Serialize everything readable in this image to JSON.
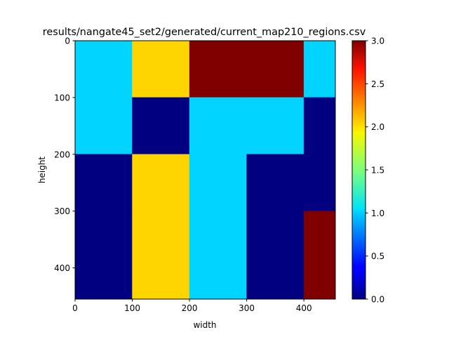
{
  "chart_data": {
    "type": "heatmap",
    "title": "results/nangate45_set2/generated/current_map210_regions.csv",
    "xlabel": "width",
    "ylabel": "height",
    "x_edges": [
      0,
      100,
      200,
      300,
      400,
      455
    ],
    "y_edges": [
      0,
      100,
      200,
      300,
      455
    ],
    "xlim": [
      0,
      455
    ],
    "ylim": [
      455,
      0
    ],
    "x_ticks": [
      0,
      100,
      200,
      300,
      400
    ],
    "y_ticks": [
      0,
      100,
      200,
      300,
      400
    ],
    "values": [
      [
        1,
        2,
        3,
        3,
        1
      ],
      [
        1,
        0,
        1,
        1,
        0
      ],
      [
        0,
        2,
        1,
        0,
        0
      ],
      [
        0,
        2,
        1,
        0,
        3
      ]
    ],
    "colormap": "jet",
    "vmin": 0,
    "vmax": 3,
    "colorbar_ticks": [
      "0.0",
      "0.5",
      "1.0",
      "1.5",
      "2.0",
      "2.5",
      "3.0"
    ],
    "grid": false
  }
}
